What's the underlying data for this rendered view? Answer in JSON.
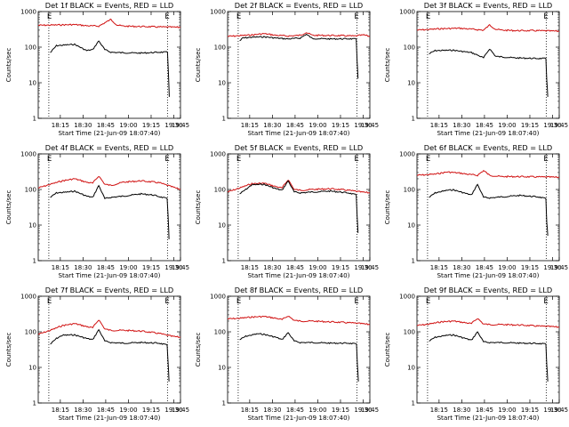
{
  "chart_data": [
    {
      "type": "line",
      "title": "Det 1f BLACK = Events, RED = LLD",
      "xlabel": "Start Time (21-Jun-09 18:07:40)",
      "ylabel": "Counts/sec",
      "x_ticks": [
        "18:15",
        "18:30",
        "18:45",
        "19:00",
        "19:15",
        "19:30",
        "19:45"
      ],
      "y_ticks": [
        "1",
        "10",
        "100",
        "1000"
      ],
      "y_scale": "log",
      "ylim": [
        1,
        1000
      ],
      "markers": [
        "E",
        "E"
      ],
      "series": [
        {
          "color": "#d01010",
          "x": [
            0,
            12,
            16,
            20,
            24,
            26,
            28,
            40,
            47
          ],
          "y": [
            410,
            430,
            400,
            390,
            600,
            420,
            390,
            370,
            360
          ]
        },
        {
          "color": "#000000",
          "x": [
            4,
            6,
            12,
            16,
            18,
            20,
            22,
            24,
            27,
            34,
            40,
            42.7,
            43.0,
            43.3
          ],
          "y": [
            70,
            110,
            120,
            80,
            85,
            150,
            85,
            72,
            70,
            68,
            72,
            72,
            20,
            4
          ]
        }
      ]
    },
    {
      "type": "line",
      "title": "Det 2f BLACK = Events, RED = LLD",
      "xlabel": "Start Time (21-Jun-09 18:07:40)",
      "ylabel": "Counts/sec",
      "x_ticks": [
        "18:15",
        "18:30",
        "18:45",
        "19:00",
        "19:15",
        "19:30",
        "19:45"
      ],
      "y_ticks": [
        "1",
        "10",
        "100",
        "1000"
      ],
      "y_scale": "log",
      "ylim": [
        1,
        1000
      ],
      "markers": [
        "E",
        "E"
      ],
      "series": [
        {
          "color": "#d01010",
          "x": [
            0,
            8,
            12,
            16,
            20,
            24,
            26,
            28,
            36,
            42,
            45,
            47
          ],
          "y": [
            200,
            220,
            240,
            215,
            205,
            215,
            260,
            215,
            212,
            205,
            220,
            200
          ]
        },
        {
          "color": "#000000",
          "x": [
            4,
            5,
            8,
            12,
            16,
            20,
            24,
            26,
            28,
            34,
            40,
            42.5,
            42.8,
            43.1
          ],
          "y": [
            150,
            180,
            190,
            195,
            180,
            170,
            180,
            230,
            175,
            170,
            172,
            168,
            40,
            13
          ]
        }
      ]
    },
    {
      "type": "line",
      "title": "Det 3f BLACK = Events, RED = LLD",
      "xlabel": "Start Time (21-Jun-09 18:07:40)",
      "ylabel": "Counts/sec",
      "x_ticks": [
        "18:15",
        "18:30",
        "18:45",
        "19:00",
        "19:15",
        "19:30",
        "19:45"
      ],
      "y_ticks": [
        "1",
        "10",
        "100",
        "1000"
      ],
      "y_scale": "log",
      "ylim": [
        1,
        1000
      ],
      "markers": [
        "E",
        "E"
      ],
      "series": [
        {
          "color": "#d01010",
          "x": [
            0,
            8,
            14,
            18,
            22,
            24,
            26,
            28,
            34,
            40,
            47
          ],
          "y": [
            300,
            330,
            340,
            320,
            300,
            420,
            320,
            300,
            290,
            290,
            280
          ]
        },
        {
          "color": "#000000",
          "x": [
            4,
            6,
            12,
            18,
            20,
            22,
            24,
            26,
            32,
            40,
            42.6,
            42.9,
            43.2
          ],
          "y": [
            65,
            80,
            82,
            70,
            60,
            50,
            90,
            55,
            50,
            48,
            48,
            12,
            4
          ]
        }
      ]
    },
    {
      "type": "line",
      "title": "Det 4f BLACK = Events, RED = LLD",
      "xlabel": "Start Time (21-Jun-09 18:07:40)",
      "ylabel": "Counts/sec",
      "x_ticks": [
        "18:15",
        "18:30",
        "18:45",
        "19:00",
        "19:15",
        "19:30",
        "19:45"
      ],
      "y_ticks": [
        "1",
        "10",
        "100",
        "1000"
      ],
      "y_scale": "log",
      "ylim": [
        1,
        1000
      ],
      "markers": [
        "E",
        "E"
      ],
      "series": [
        {
          "color": "#d01010",
          "x": [
            0,
            4,
            8,
            12,
            16,
            18,
            20,
            22,
            24,
            28,
            34,
            40,
            44,
            47
          ],
          "y": [
            110,
            140,
            175,
            200,
            160,
            150,
            240,
            140,
            130,
            160,
            175,
            155,
            120,
            100
          ]
        },
        {
          "color": "#000000",
          "x": [
            4,
            6,
            10,
            12,
            16,
            18,
            20,
            22,
            24,
            28,
            34,
            38,
            42.6,
            42.9,
            43.2
          ],
          "y": [
            60,
            80,
            85,
            90,
            65,
            60,
            130,
            55,
            60,
            65,
            75,
            70,
            55,
            20,
            4
          ]
        }
      ]
    },
    {
      "type": "line",
      "title": "Det 5f BLACK = Events, RED = LLD",
      "xlabel": "Start Time (21-Jun-09 18:07:40)",
      "ylabel": "Counts/sec",
      "x_ticks": [
        "18:15",
        "18:30",
        "18:45",
        "19:00",
        "19:15",
        "19:30",
        "19:45"
      ],
      "y_ticks": [
        "1",
        "10",
        "100",
        "1000"
      ],
      "y_scale": "log",
      "ylim": [
        1,
        1000
      ],
      "markers": [
        "E",
        "E"
      ],
      "series": [
        {
          "color": "#d01010",
          "x": [
            0,
            4,
            8,
            12,
            16,
            18,
            20,
            22,
            24,
            28,
            34,
            40,
            44,
            47
          ],
          "y": [
            85,
            110,
            145,
            150,
            120,
            110,
            190,
            100,
            95,
            100,
            105,
            95,
            85,
            80
          ]
        },
        {
          "color": "#000000",
          "x": [
            4,
            6,
            8,
            12,
            16,
            18,
            20,
            22,
            24,
            28,
            34,
            40,
            42.5,
            42.8,
            43.1
          ],
          "y": [
            75,
            100,
            135,
            140,
            105,
            95,
            175,
            85,
            80,
            85,
            90,
            80,
            70,
            18,
            6
          ]
        }
      ]
    },
    {
      "type": "line",
      "title": "Det 6f BLACK = Events, RED = LLD",
      "xlabel": "Start Time (21-Jun-09 18:07:40)",
      "ylabel": "Counts/sec",
      "x_ticks": [
        "18:15",
        "18:30",
        "18:45",
        "19:00",
        "19:15",
        "19:30",
        "19:45"
      ],
      "y_ticks": [
        "1",
        "10",
        "100",
        "1000"
      ],
      "y_scale": "log",
      "ylim": [
        1,
        1000
      ],
      "markers": [
        "E",
        "E"
      ],
      "series": [
        {
          "color": "#d01010",
          "x": [
            0,
            6,
            10,
            14,
            18,
            20,
            22,
            24,
            28,
            34,
            40,
            47
          ],
          "y": [
            250,
            270,
            310,
            290,
            260,
            250,
            340,
            250,
            230,
            230,
            225,
            220
          ]
        },
        {
          "color": "#000000",
          "x": [
            4,
            6,
            10,
            12,
            16,
            18,
            20,
            22,
            24,
            28,
            34,
            40,
            42.6,
            42.9,
            43.2
          ],
          "y": [
            60,
            80,
            95,
            98,
            78,
            70,
            140,
            60,
            58,
            62,
            68,
            62,
            55,
            12,
            5
          ]
        }
      ]
    },
    {
      "type": "line",
      "title": "Det 7f BLACK = Events, RED = LLD",
      "xlabel": "Start Time (21-Jun-09 18:07:40)",
      "ylabel": "Counts/sec",
      "x_ticks": [
        "18:15",
        "18:30",
        "18:45",
        "19:00",
        "19:15",
        "19:30",
        "19:45"
      ],
      "y_ticks": [
        "1",
        "10",
        "100",
        "1000"
      ],
      "y_scale": "log",
      "ylim": [
        1,
        1000
      ],
      "markers": [
        "E",
        "E"
      ],
      "series": [
        {
          "color": "#d01010",
          "x": [
            0,
            4,
            8,
            12,
            16,
            18,
            20,
            22,
            24,
            28,
            34,
            40,
            44,
            47
          ],
          "y": [
            85,
            110,
            150,
            170,
            140,
            130,
            220,
            120,
            110,
            110,
            105,
            90,
            75,
            70
          ]
        },
        {
          "color": "#000000",
          "x": [
            4,
            6,
            8,
            12,
            16,
            18,
            20,
            22,
            24,
            28,
            34,
            40,
            42.6,
            42.9,
            43.2
          ],
          "y": [
            45,
            65,
            80,
            82,
            65,
            60,
            115,
            55,
            50,
            48,
            50,
            48,
            42,
            15,
            4
          ]
        }
      ]
    },
    {
      "type": "line",
      "title": "Det 8f BLACK = Events, RED = LLD",
      "xlabel": "Start Time (21-Jun-09 18:07:40)",
      "ylabel": "Counts/sec",
      "x_ticks": [
        "18:15",
        "18:30",
        "18:45",
        "19:00",
        "19:15",
        "19:30",
        "19:45"
      ],
      "y_ticks": [
        "1",
        "10",
        "100",
        "1000"
      ],
      "y_scale": "log",
      "ylim": [
        1,
        1000
      ],
      "markers": [
        "E",
        "E"
      ],
      "series": [
        {
          "color": "#d01010",
          "x": [
            0,
            4,
            8,
            12,
            16,
            18,
            20,
            22,
            24,
            28,
            34,
            40,
            44,
            47
          ],
          "y": [
            230,
            240,
            260,
            270,
            240,
            220,
            280,
            210,
            200,
            200,
            190,
            180,
            170,
            160
          ]
        },
        {
          "color": "#000000",
          "x": [
            4,
            6,
            10,
            12,
            16,
            18,
            20,
            22,
            24,
            28,
            34,
            40,
            42.6,
            42.9,
            43.2
          ],
          "y": [
            60,
            75,
            88,
            85,
            70,
            60,
            95,
            55,
            50,
            50,
            48,
            48,
            45,
            12,
            4
          ]
        }
      ]
    },
    {
      "type": "line",
      "title": "Det 9f BLACK = Events, RED = LLD",
      "xlabel": "Start Time (21-Jun-09 18:07:40)",
      "ylabel": "Counts/sec",
      "x_ticks": [
        "18:15",
        "18:30",
        "18:45",
        "19:00",
        "19:15",
        "19:30",
        "19:45"
      ],
      "y_ticks": [
        "1",
        "10",
        "100",
        "1000"
      ],
      "y_scale": "log",
      "ylim": [
        1,
        1000
      ],
      "markers": [
        "E",
        "E"
      ],
      "series": [
        {
          "color": "#d01010",
          "x": [
            0,
            4,
            8,
            12,
            16,
            18,
            20,
            22,
            24,
            28,
            34,
            40,
            44,
            47
          ],
          "y": [
            150,
            165,
            190,
            200,
            180,
            170,
            240,
            165,
            160,
            160,
            155,
            145,
            140,
            135
          ]
        },
        {
          "color": "#000000",
          "x": [
            4,
            6,
            10,
            12,
            16,
            18,
            20,
            22,
            24,
            28,
            34,
            40,
            42.6,
            42.9,
            43.2
          ],
          "y": [
            55,
            70,
            80,
            82,
            65,
            58,
            100,
            52,
            50,
            50,
            48,
            47,
            45,
            12,
            4
          ]
        }
      ]
    }
  ]
}
